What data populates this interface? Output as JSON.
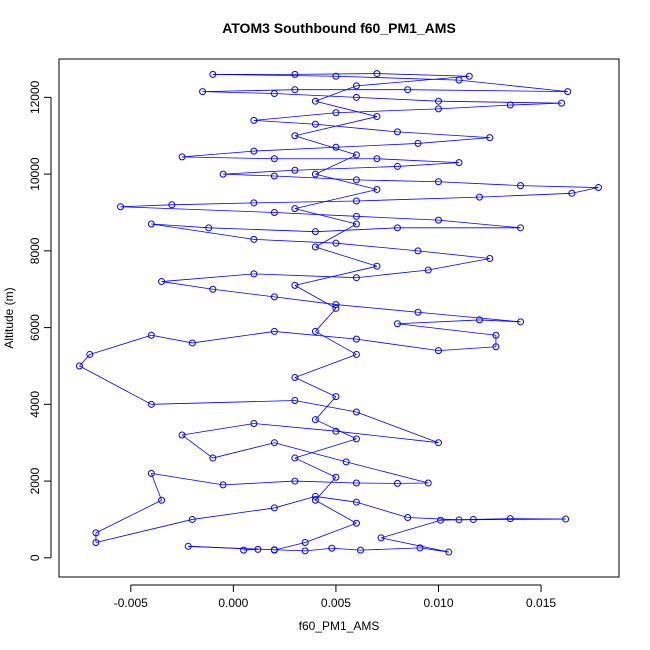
{
  "chart_data": {
    "type": "scatter",
    "title": "ATOM3 Southbound f60_PM1_AMS",
    "xlabel": "f60_PM1_AMS",
    "ylabel": "Altitude (m)",
    "xlim": [
      -0.0085,
      0.0188
    ],
    "ylim": [
      -500,
      13000
    ],
    "x_ticks": [
      -0.005,
      0.0,
      0.005,
      0.01,
      0.015
    ],
    "x_tick_labels": [
      "-0.005",
      "0.000",
      "0.005",
      "0.010",
      "0.015"
    ],
    "y_ticks": [
      0,
      2000,
      4000,
      6000,
      8000,
      10000,
      12000
    ],
    "y_tick_labels": [
      "0",
      "2000",
      "4000",
      "6000",
      "8000",
      "10000",
      "12000"
    ],
    "grid": false,
    "connected": true,
    "marker": "open-circle",
    "color": "#0000ff",
    "series": [
      {
        "points": [
          [
            0.0005,
            200
          ],
          [
            0.0012,
            220
          ],
          [
            -0.0022,
            300
          ],
          [
            0.002,
            210
          ],
          [
            0.0035,
            180
          ],
          [
            0.0048,
            250
          ],
          [
            0.0062,
            200
          ],
          [
            0.0091,
            260
          ],
          [
            0.0105,
            150
          ],
          [
            0.0072,
            520
          ],
          [
            0.0101,
            980
          ],
          [
            0.0117,
            1000
          ],
          [
            0.0135,
            1020
          ],
          [
            0.0162,
            1010
          ],
          [
            0.011,
            990
          ],
          [
            0.0085,
            1050
          ],
          [
            0.006,
            1450
          ],
          [
            0.004,
            1600
          ],
          [
            0.002,
            1300
          ],
          [
            -0.002,
            1000
          ],
          [
            -0.0067,
            400
          ],
          [
            -0.0067,
            650
          ],
          [
            -0.0035,
            1500
          ],
          [
            -0.004,
            2200
          ],
          [
            -0.0005,
            1900
          ],
          [
            0.003,
            2000
          ],
          [
            0.006,
            1950
          ],
          [
            0.008,
            1940
          ],
          [
            0.0095,
            1950
          ],
          [
            0.0055,
            2500
          ],
          [
            0.002,
            3000
          ],
          [
            -0.001,
            2600
          ],
          [
            -0.0025,
            3200
          ],
          [
            0.001,
            3500
          ],
          [
            0.005,
            3300
          ],
          [
            0.01,
            3000
          ],
          [
            0.006,
            3800
          ],
          [
            0.003,
            4100
          ],
          [
            -0.004,
            4000
          ],
          [
            -0.0075,
            5000
          ],
          [
            -0.007,
            5300
          ],
          [
            -0.004,
            5800
          ],
          [
            -0.002,
            5600
          ],
          [
            0.002,
            5900
          ],
          [
            0.006,
            5700
          ],
          [
            0.01,
            5400
          ],
          [
            0.0128,
            5500
          ],
          [
            0.0128,
            5800
          ],
          [
            0.008,
            6100
          ],
          [
            0.012,
            6200
          ],
          [
            0.014,
            6150
          ],
          [
            0.009,
            6400
          ],
          [
            0.005,
            6600
          ],
          [
            0.002,
            6800
          ],
          [
            -0.001,
            7000
          ],
          [
            -0.0035,
            7200
          ],
          [
            0.001,
            7400
          ],
          [
            0.006,
            7300
          ],
          [
            0.0095,
            7500
          ],
          [
            0.0125,
            7800
          ],
          [
            0.009,
            8000
          ],
          [
            0.005,
            8200
          ],
          [
            0.001,
            8300
          ],
          [
            -0.004,
            8700
          ],
          [
            -0.0012,
            8600
          ],
          [
            0.004,
            8500
          ],
          [
            0.008,
            8600
          ],
          [
            0.014,
            8600
          ],
          [
            0.01,
            8800
          ],
          [
            0.006,
            8900
          ],
          [
            0.002,
            9000
          ],
          [
            -0.0055,
            9150
          ],
          [
            -0.003,
            9200
          ],
          [
            0.001,
            9250
          ],
          [
            0.006,
            9300
          ],
          [
            0.012,
            9400
          ],
          [
            0.0165,
            9500
          ],
          [
            0.0178,
            9650
          ],
          [
            0.014,
            9700
          ],
          [
            0.01,
            9800
          ],
          [
            0.006,
            9850
          ],
          [
            0.002,
            9950
          ],
          [
            -0.0005,
            10000
          ],
          [
            0.003,
            10100
          ],
          [
            0.008,
            10200
          ],
          [
            0.011,
            10300
          ],
          [
            0.007,
            10400
          ],
          [
            0.002,
            10400
          ],
          [
            -0.0025,
            10450
          ],
          [
            0.001,
            10600
          ],
          [
            0.005,
            10700
          ],
          [
            0.009,
            10800
          ],
          [
            0.0125,
            10950
          ],
          [
            0.008,
            11100
          ],
          [
            0.004,
            11300
          ],
          [
            0.001,
            11400
          ],
          [
            0.005,
            11600
          ],
          [
            0.01,
            11700
          ],
          [
            0.0135,
            11800
          ],
          [
            0.016,
            11850
          ],
          [
            0.01,
            11900
          ],
          [
            0.006,
            12000
          ],
          [
            0.002,
            12100
          ],
          [
            -0.0015,
            12150
          ],
          [
            0.003,
            12200
          ],
          [
            0.0085,
            12200
          ],
          [
            0.0163,
            12150
          ],
          [
            0.011,
            12450
          ],
          [
            0.005,
            12550
          ],
          [
            -0.001,
            12600
          ],
          [
            0.003,
            12600
          ],
          [
            0.007,
            12620
          ],
          [
            0.0115,
            12550
          ],
          [
            0.006,
            12300
          ],
          [
            0.004,
            11900
          ],
          [
            0.007,
            11500
          ],
          [
            0.003,
            11000
          ],
          [
            0.006,
            10500
          ],
          [
            0.004,
            10000
          ],
          [
            0.007,
            9600
          ],
          [
            0.003,
            9100
          ],
          [
            0.006,
            8700
          ],
          [
            0.004,
            8100
          ],
          [
            0.007,
            7600
          ],
          [
            0.003,
            7100
          ],
          [
            0.005,
            6500
          ],
          [
            0.004,
            5900
          ],
          [
            0.006,
            5300
          ],
          [
            0.003,
            4700
          ],
          [
            0.005,
            4200
          ],
          [
            0.004,
            3600
          ],
          [
            0.006,
            3100
          ],
          [
            0.003,
            2600
          ],
          [
            0.005,
            2100
          ],
          [
            0.004,
            1500
          ],
          [
            0.006,
            900
          ],
          [
            0.0035,
            400
          ],
          [
            0.002,
            200
          ]
        ]
      }
    ]
  }
}
